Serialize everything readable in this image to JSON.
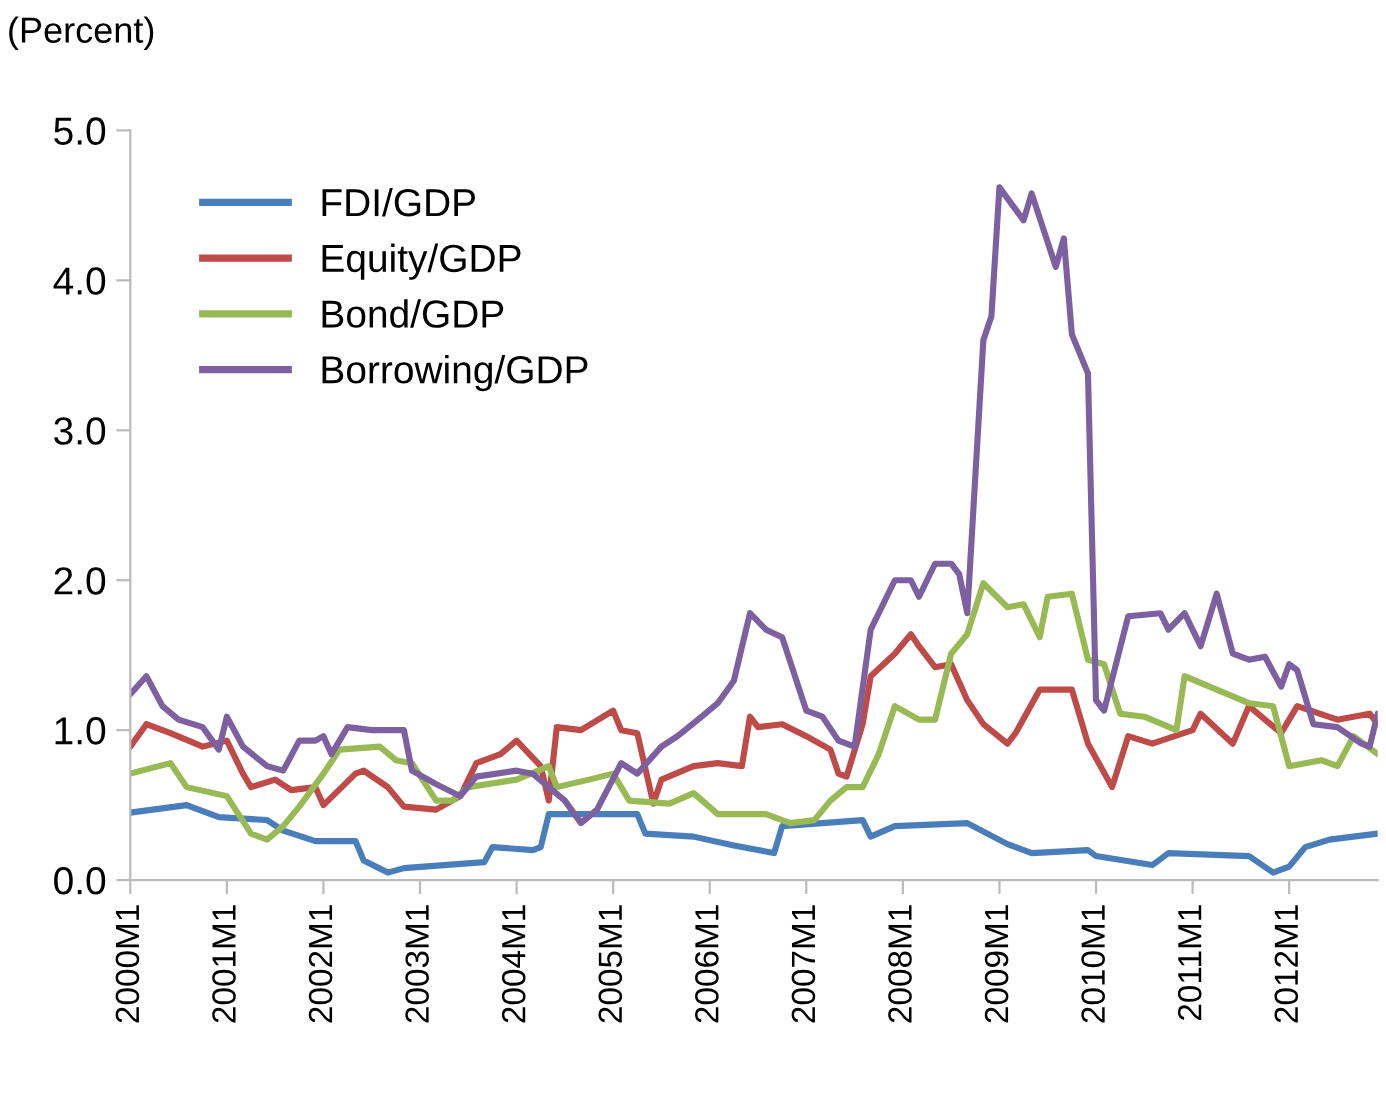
{
  "chart_data": {
    "type": "line",
    "ylabel": "(Percent)",
    "legend": "top left",
    "grid": false,
    "line_style": "solid",
    "marker": "none",
    "xlim": [
      "2000-01",
      "2012-12"
    ],
    "ylim": [
      0,
      5
    ],
    "yticks": [
      {
        "value": 0,
        "label": "0.0"
      },
      {
        "value": 1,
        "label": "1.0"
      },
      {
        "value": 2,
        "label": "2.0"
      },
      {
        "value": 3,
        "label": "3.0"
      },
      {
        "value": 4,
        "label": "4.0"
      },
      {
        "value": 5,
        "label": "5.0"
      }
    ],
    "xticks": [
      {
        "value": "2000-01",
        "label": "2000M1"
      },
      {
        "value": "2001-01",
        "label": "2001M1"
      },
      {
        "value": "2002-01",
        "label": "2002M1"
      },
      {
        "value": "2003-01",
        "label": "2003M1"
      },
      {
        "value": "2004-01",
        "label": "2004M1"
      },
      {
        "value": "2005-01",
        "label": "2005M1"
      },
      {
        "value": "2006-01",
        "label": "2006M1"
      },
      {
        "value": "2007-01",
        "label": "2007M1"
      },
      {
        "value": "2008-01",
        "label": "2008M1"
      },
      {
        "value": "2009-01",
        "label": "2009M1"
      },
      {
        "value": "2010-01",
        "label": "2010M1"
      },
      {
        "value": "2011-01",
        "label": "2011M1"
      },
      {
        "value": "2012-01",
        "label": "2012M1"
      }
    ],
    "series": [
      {
        "name": "FDI/GDP",
        "color": "#4a7ebb",
        "x": [
          "2000-01",
          "2000-08",
          "2000-12",
          "2001-06",
          "2001-08",
          "2001-12",
          "2002-05",
          "2002-06",
          "2002-09",
          "2002-11",
          "2003-09",
          "2003-10",
          "2004-03",
          "2004-04",
          "2004-05",
          "2005-04",
          "2005-05",
          "2005-11",
          "2006-04",
          "2006-09",
          "2006-10",
          "2007-08",
          "2007-09",
          "2007-12",
          "2008-09",
          "2009-02",
          "2009-05",
          "2009-12",
          "2010-01",
          "2010-08",
          "2010-10",
          "2011-08",
          "2011-11",
          "2012-01",
          "2012-03",
          "2012-06",
          "2012-12"
        ],
        "values": [
          0.45,
          0.5,
          0.42,
          0.4,
          0.33,
          0.26,
          0.26,
          0.13,
          0.05,
          0.08,
          0.12,
          0.22,
          0.2,
          0.22,
          0.44,
          0.44,
          0.31,
          0.29,
          0.23,
          0.18,
          0.36,
          0.4,
          0.29,
          0.36,
          0.38,
          0.24,
          0.18,
          0.2,
          0.16,
          0.1,
          0.18,
          0.16,
          0.05,
          0.09,
          0.22,
          0.27,
          0.31
        ]
      },
      {
        "name": "Equity/GDP",
        "color": "#be4b48",
        "x": [
          "2000-01",
          "2000-03",
          "2000-06",
          "2000-10",
          "2001-01",
          "2001-03",
          "2001-04",
          "2001-07",
          "2001-09",
          "2001-12",
          "2002-01",
          "2002-05",
          "2002-06",
          "2002-09",
          "2002-11",
          "2003-03",
          "2003-06",
          "2003-08",
          "2003-11",
          "2004-01",
          "2004-04",
          "2004-05",
          "2004-06",
          "2004-09",
          "2005-01",
          "2005-02",
          "2005-04",
          "2005-06",
          "2005-07",
          "2005-11",
          "2006-02",
          "2006-05",
          "2006-06",
          "2006-07",
          "2006-10",
          "2007-01",
          "2007-04",
          "2007-05",
          "2007-06",
          "2007-08",
          "2007-09",
          "2007-12",
          "2008-02",
          "2008-03",
          "2008-05",
          "2008-07",
          "2008-09",
          "2008-11",
          "2009-02",
          "2009-03",
          "2009-06",
          "2009-10",
          "2009-12",
          "2010-03",
          "2010-05",
          "2010-08",
          "2011-01",
          "2011-02",
          "2011-06",
          "2011-08",
          "2011-12",
          "2012-02",
          "2012-07",
          "2012-11",
          "2012-12"
        ],
        "values": [
          0.89,
          1.04,
          0.98,
          0.89,
          0.93,
          0.71,
          0.62,
          0.67,
          0.6,
          0.62,
          0.5,
          0.71,
          0.73,
          0.62,
          0.49,
          0.47,
          0.56,
          0.78,
          0.84,
          0.93,
          0.76,
          0.53,
          1.02,
          1.0,
          1.13,
          1.0,
          0.98,
          0.51,
          0.67,
          0.76,
          0.78,
          0.76,
          1.09,
          1.02,
          1.04,
          0.96,
          0.87,
          0.71,
          0.69,
          1.04,
          1.36,
          1.51,
          1.64,
          1.56,
          1.42,
          1.44,
          1.2,
          1.04,
          0.91,
          0.98,
          1.27,
          1.27,
          0.91,
          0.62,
          0.96,
          0.91,
          1.0,
          1.11,
          0.91,
          1.16,
          0.98,
          1.16,
          1.07,
          1.11,
          1.04
        ]
      },
      {
        "name": "Bond/GDP",
        "color": "#98b954",
        "x": [
          "2000-01",
          "2000-06",
          "2000-08",
          "2001-01",
          "2001-04",
          "2001-06",
          "2001-08",
          "2001-10",
          "2002-01",
          "2002-03",
          "2002-08",
          "2002-10",
          "2002-12",
          "2003-03",
          "2003-05",
          "2003-07",
          "2004-01",
          "2004-05",
          "2004-06",
          "2004-10",
          "2005-01",
          "2005-03",
          "2005-08",
          "2005-11",
          "2006-02",
          "2006-08",
          "2006-11",
          "2007-02",
          "2007-04",
          "2007-06",
          "2007-08",
          "2007-10",
          "2007-12",
          "2008-03",
          "2008-05",
          "2008-07",
          "2008-09",
          "2008-11",
          "2009-02",
          "2009-04",
          "2009-06",
          "2009-07",
          "2009-10",
          "2009-12",
          "2010-02",
          "2010-04",
          "2010-07",
          "2010-11",
          "2010-12",
          "2011-08",
          "2011-11",
          "2012-01",
          "2012-05",
          "2012-07",
          "2012-09",
          "2012-12"
        ],
        "values": [
          0.71,
          0.78,
          0.62,
          0.56,
          0.31,
          0.27,
          0.36,
          0.49,
          0.71,
          0.87,
          0.89,
          0.8,
          0.78,
          0.53,
          0.53,
          0.62,
          0.67,
          0.76,
          0.62,
          0.67,
          0.71,
          0.53,
          0.51,
          0.58,
          0.44,
          0.44,
          0.38,
          0.4,
          0.53,
          0.62,
          0.62,
          0.84,
          1.16,
          1.07,
          1.07,
          1.51,
          1.64,
          1.98,
          1.82,
          1.84,
          1.62,
          1.89,
          1.91,
          1.47,
          1.44,
          1.11,
          1.09,
          1.0,
          1.36,
          1.18,
          1.16,
          0.76,
          0.8,
          0.76,
          0.96,
          0.84
        ]
      },
      {
        "name": "Borrowing/GDP",
        "color": "#7d60a0",
        "x": [
          "2000-01",
          "2000-03",
          "2000-05",
          "2000-07",
          "2000-10",
          "2000-12",
          "2001-01",
          "2001-03",
          "2001-06",
          "2001-08",
          "2001-10",
          "2001-12",
          "2002-01",
          "2002-02",
          "2002-04",
          "2002-07",
          "2002-11",
          "2002-12",
          "2003-03",
          "2003-06",
          "2003-08",
          "2004-01",
          "2004-03",
          "2004-05",
          "2004-07",
          "2004-09",
          "2004-11",
          "2005-02",
          "2005-04",
          "2005-07",
          "2005-09",
          "2005-12",
          "2006-02",
          "2006-04",
          "2006-06",
          "2006-08",
          "2006-10",
          "2007-01",
          "2007-03",
          "2007-05",
          "2007-07",
          "2007-09",
          "2007-12",
          "2008-02",
          "2008-03",
          "2008-05",
          "2008-07",
          "2008-08",
          "2008-09",
          "2008-11",
          "2008-12",
          "2009-01",
          "2009-04",
          "2009-05",
          "2009-08",
          "2009-09",
          "2009-10",
          "2009-12",
          "2010-01",
          "2010-02",
          "2010-05",
          "2010-09",
          "2010-10",
          "2010-12",
          "2011-02",
          "2011-04",
          "2011-06",
          "2011-08",
          "2011-10",
          "2011-12",
          "2012-01",
          "2012-02",
          "2012-04",
          "2012-07",
          "2012-10",
          "2012-11",
          "2012-12"
        ],
        "values": [
          1.24,
          1.36,
          1.16,
          1.07,
          1.02,
          0.87,
          1.09,
          0.89,
          0.76,
          0.73,
          0.93,
          0.93,
          0.96,
          0.84,
          1.02,
          1.0,
          1.0,
          0.73,
          0.64,
          0.56,
          0.69,
          0.73,
          0.71,
          0.62,
          0.53,
          0.38,
          0.47,
          0.78,
          0.71,
          0.89,
          0.96,
          1.09,
          1.18,
          1.33,
          1.78,
          1.67,
          1.62,
          1.13,
          1.09,
          0.93,
          0.89,
          1.67,
          2.0,
          2.0,
          1.89,
          2.11,
          2.11,
          2.04,
          1.78,
          3.6,
          3.76,
          4.62,
          4.4,
          4.58,
          4.09,
          4.28,
          3.64,
          3.38,
          1.2,
          1.13,
          1.76,
          1.78,
          1.67,
          1.78,
          1.56,
          1.91,
          1.51,
          1.47,
          1.49,
          1.29,
          1.44,
          1.4,
          1.04,
          1.02,
          0.91,
          0.89,
          1.11
        ]
      }
    ]
  }
}
